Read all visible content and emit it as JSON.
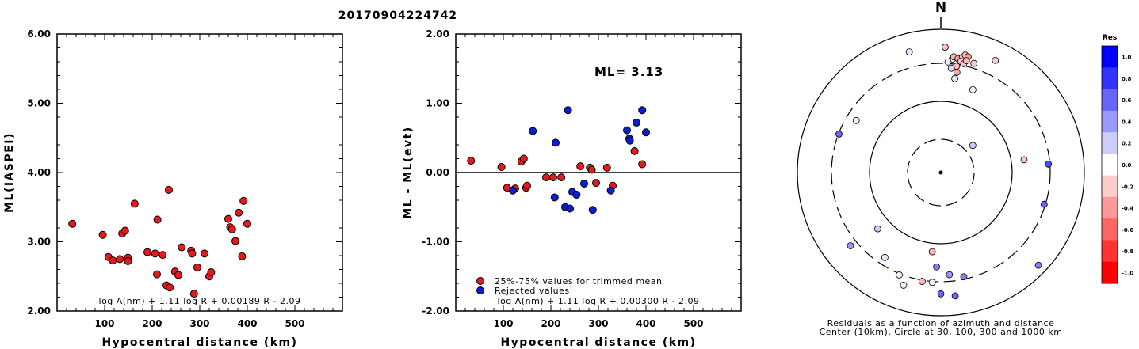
{
  "title": "20170904224742",
  "chart_data": [
    {
      "type": "scatter",
      "xlabel": "Hypocentral distance (km)",
      "ylabel": "ML(IASPEI)",
      "xlim": [
        0,
        600
      ],
      "ylim": [
        2.0,
        6.0
      ],
      "x_ticks": [
        "100",
        "200",
        "300",
        "400",
        "500"
      ],
      "y_ticks": [
        "2.00",
        "3.00",
        "4.00",
        "5.00",
        "6.00"
      ],
      "formula": "log A(nm) + 1.11 log R + 0.00189 R - 2.09",
      "color": "#e41a1c",
      "points": [
        [
          32,
          3.26
        ],
        [
          96,
          3.1
        ],
        [
          108,
          2.78
        ],
        [
          117,
          2.73
        ],
        [
          132,
          2.75
        ],
        [
          137,
          3.12
        ],
        [
          143,
          3.16
        ],
        [
          149,
          2.77
        ],
        [
          149,
          2.72
        ],
        [
          163,
          3.55
        ],
        [
          190,
          2.85
        ],
        [
          206,
          2.83
        ],
        [
          211,
          3.32
        ],
        [
          210,
          2.53
        ],
        [
          222,
          2.81
        ],
        [
          230,
          2.37
        ],
        [
          235,
          3.75
        ],
        [
          237,
          2.34
        ],
        [
          248,
          2.57
        ],
        [
          255,
          2.52
        ],
        [
          262,
          2.92
        ],
        [
          282,
          2.87
        ],
        [
          284,
          2.83
        ],
        [
          288,
          2.25
        ],
        [
          295,
          2.63
        ],
        [
          310,
          2.83
        ],
        [
          320,
          2.5
        ],
        [
          324,
          2.56
        ],
        [
          360,
          3.33
        ],
        [
          364,
          3.21
        ],
        [
          368,
          3.18
        ],
        [
          375,
          3.01
        ],
        [
          382,
          3.42
        ],
        [
          389,
          2.79
        ],
        [
          392,
          3.59
        ],
        [
          400,
          3.26
        ]
      ]
    },
    {
      "type": "scatter",
      "xlabel": "Hypocentral distance (km)",
      "ylabel": "ML - ML(evt)",
      "xlim": [
        0,
        600
      ],
      "ylim": [
        -2.0,
        2.0
      ],
      "x_ticks": [
        "100",
        "200",
        "300",
        "400",
        "500"
      ],
      "y_ticks": [
        "-2.00",
        "-1.00",
        "0.00",
        "1.00",
        "2.00"
      ],
      "ml_label": "ML= 3.13",
      "formula": "log A(nm) + 1.11 log R + 0.00300 R - 2.09",
      "series": [
        {
          "name": "25%-75% values for trimmed mean",
          "color": "#e41a1c",
          "points": [
            [
              32,
              0.17
            ],
            [
              96,
              0.08
            ],
            [
              108,
              -0.22
            ],
            [
              125,
              -0.23
            ],
            [
              138,
              0.16
            ],
            [
              143,
              0.2
            ],
            [
              148,
              -0.22
            ],
            [
              150,
              -0.19
            ],
            [
              190,
              -0.07
            ],
            [
              205,
              -0.07
            ],
            [
              222,
              -0.07
            ],
            [
              262,
              0.09
            ],
            [
              282,
              0.07
            ],
            [
              286,
              0.04
            ],
            [
              295,
              -0.15
            ],
            [
              318,
              0.07
            ],
            [
              330,
              -0.19
            ],
            [
              376,
              0.31
            ],
            [
              392,
              0.12
            ]
          ]
        },
        {
          "name": "Rejected values",
          "color": "#0a1fd4",
          "points": [
            [
              120,
              -0.26
            ],
            [
              162,
              0.6
            ],
            [
              208,
              -0.36
            ],
            [
              210,
              0.43
            ],
            [
              230,
              -0.5
            ],
            [
              236,
              0.9
            ],
            [
              240,
              -0.52
            ],
            [
              245,
              -0.28
            ],
            [
              254,
              -0.32
            ],
            [
              270,
              -0.16
            ],
            [
              288,
              -0.54
            ],
            [
              326,
              -0.26
            ],
            [
              360,
              0.61
            ],
            [
              365,
              0.49
            ],
            [
              366,
              0.46
            ],
            [
              380,
              0.72
            ],
            [
              392,
              0.9
            ],
            [
              400,
              0.58
            ]
          ]
        }
      ]
    },
    {
      "type": "scatter",
      "subtitle_1": "Residuals as a function of azimuth and distance",
      "subtitle_2": "Center (10km), Circle at 30, 100, 300 and 1000 km",
      "north_label": "N",
      "colorbar_title": "Res",
      "colorbar_ticks": [
        "1.0",
        "0.8",
        "0.6",
        "0.4",
        "0.2",
        "0.0",
        "-0.2",
        "-0.4",
        "-0.6",
        "-0.8",
        "-1.0"
      ],
      "colorbar_colors": [
        "#0000ff",
        "#3333ff",
        "#6666ff",
        "#9999ff",
        "#ccccff",
        "#ffffff",
        "#ffcccc",
        "#ff9999",
        "#ff6666",
        "#ff3333",
        "#ff0000"
      ],
      "points": [
        [
          -0.22,
          0.842,
          0.1
        ],
        [
          0.03,
          0.875,
          -0.25
        ],
        [
          0.08,
          0.793,
          0.0
        ],
        [
          0.05,
          0.772,
          0.05
        ],
        [
          0.09,
          0.808,
          -0.3
        ],
        [
          0.11,
          0.742,
          -0.25
        ],
        [
          0.12,
          0.795,
          -0.35
        ],
        [
          0.15,
          0.804,
          -0.2
        ],
        [
          0.14,
          0.776,
          -0.2
        ],
        [
          0.16,
          0.76,
          -0.25
        ],
        [
          0.17,
          0.82,
          -0.3
        ],
        [
          0.19,
          0.808,
          -0.4
        ],
        [
          0.178,
          0.781,
          -0.3
        ],
        [
          0.097,
          0.656,
          0.1
        ],
        [
          0.073,
          0.728,
          0.15
        ],
        [
          0.112,
          0.7,
          -0.35
        ],
        [
          0.23,
          0.762,
          -0.2
        ],
        [
          0.38,
          0.783,
          -0.2
        ],
        [
          0.223,
          0.578,
          0.05
        ],
        [
          -0.59,
          0.363,
          0.05
        ],
        [
          -0.71,
          0.268,
          0.6
        ],
        [
          0.58,
          0.089,
          -0.25
        ],
        [
          0.75,
          0.059,
          0.7
        ],
        [
          0.223,
          0.189,
          0.2
        ],
        [
          0.72,
          -0.222,
          0.6
        ],
        [
          0.68,
          -0.647,
          0.5
        ],
        [
          -0.44,
          -0.393,
          0.2
        ],
        [
          -0.63,
          -0.511,
          0.4
        ],
        [
          -0.39,
          -0.593,
          0.1
        ],
        [
          -0.06,
          -0.553,
          -0.3
        ],
        [
          -0.29,
          -0.715,
          0.05
        ],
        [
          -0.26,
          -0.787,
          0.05
        ],
        [
          -0.13,
          -0.76,
          -0.3
        ],
        [
          -0.06,
          -0.767,
          0.05
        ],
        [
          -0.03,
          -0.659,
          0.5
        ],
        [
          0.0,
          -0.847,
          0.6
        ],
        [
          0.06,
          -0.713,
          0.4
        ],
        [
          0.1,
          -0.861,
          0.6
        ],
        [
          0.16,
          -0.728,
          0.5
        ]
      ]
    }
  ]
}
